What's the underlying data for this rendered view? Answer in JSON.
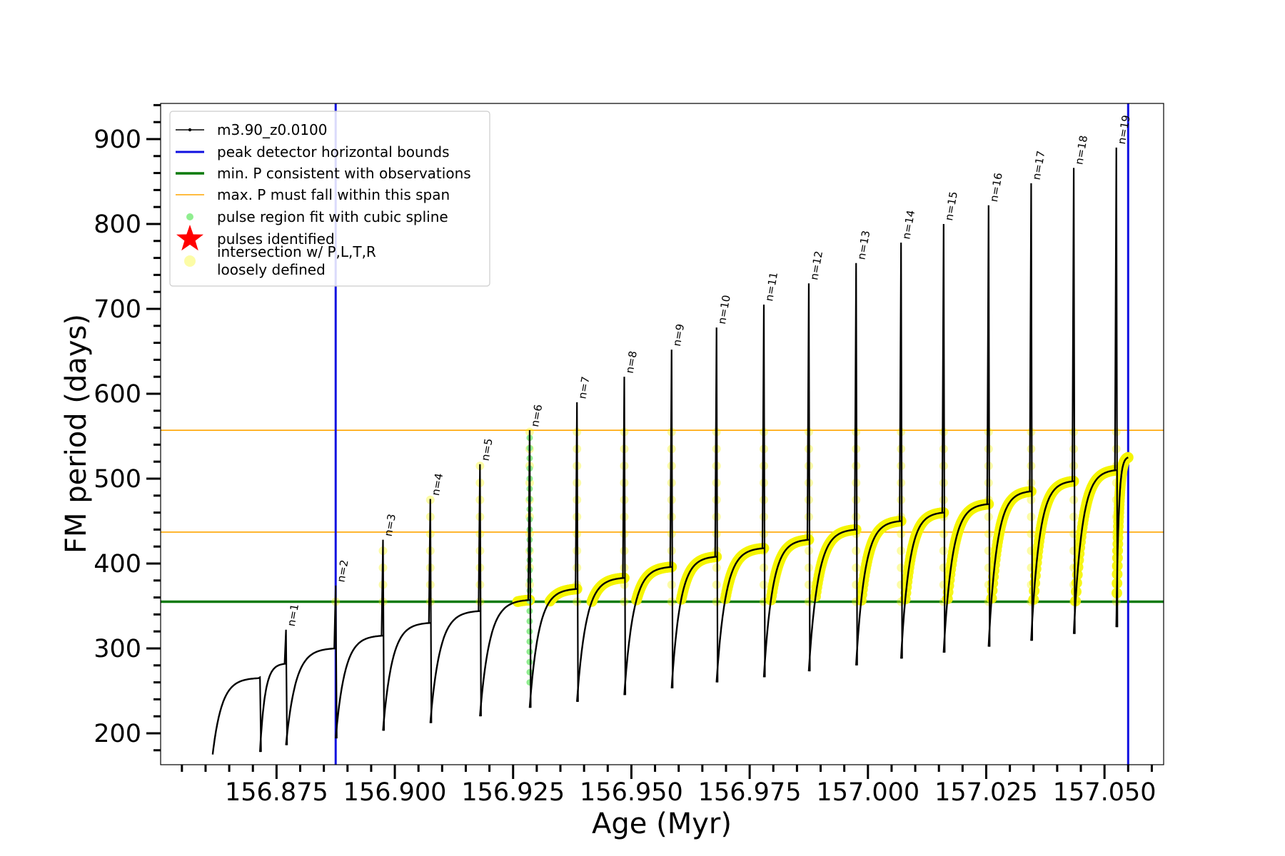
{
  "chart_data": {
    "type": "line",
    "xlabel": "Age (Myr)",
    "ylabel": "FM period (days)",
    "xlim": [
      156.8505,
      157.0625
    ],
    "ylim": [
      163,
      942
    ],
    "x_ticks": [
      156.875,
      156.9,
      156.925,
      156.95,
      156.975,
      157.0,
      157.025,
      157.05
    ],
    "x_tick_labels": [
      "156.875",
      "156.900",
      "156.925",
      "156.950",
      "156.975",
      "157.000",
      "157.025",
      "157.050"
    ],
    "y_ticks": [
      200,
      300,
      400,
      500,
      600,
      700,
      800,
      900
    ],
    "y_tick_labels": [
      "200",
      "300",
      "400",
      "500",
      "600",
      "700",
      "800",
      "900"
    ],
    "grid": false,
    "legend_placement": "top-left",
    "horizontal_lines": {
      "min_P": 355,
      "max_P_span": [
        437,
        557
      ]
    },
    "vertical_lines": [
      156.8875,
      157.055
    ],
    "colors": {
      "track": "#000000",
      "bounds": "#1010e0",
      "min_P": "#0a7a0a",
      "max_P": "#ffa500",
      "spline": "#90ee90",
      "pulse": "#ff0000",
      "intersection": "#f5f500"
    },
    "legend": [
      {
        "label": "m3.90_z0.0100",
        "kind": "line-marker"
      },
      {
        "label": "peak detector horizontal bounds",
        "kind": "line-blue"
      },
      {
        "label": "min. P consistent with observations",
        "kind": "line-green"
      },
      {
        "label": "max. P must fall within this span",
        "kind": "line-orange"
      },
      {
        "label": "pulse region fit with cubic spline",
        "kind": "dot-green"
      },
      {
        "label": "pulses identified",
        "kind": "star-red"
      },
      {
        "label": "intersection w/ P,L,T,R",
        "label2": "loosely defined",
        "kind": "dot-yellow"
      }
    ],
    "track_start": {
      "age": 156.8615,
      "period": 175
    },
    "cycles": [
      {
        "n": "",
        "age": 156.8715,
        "peak": 266,
        "min": 178
      },
      {
        "n": "n=1",
        "age": 156.877,
        "peak": 322,
        "min": 186
      },
      {
        "n": "n=2",
        "age": 156.8875,
        "peak": 374,
        "min": 194
      },
      {
        "n": "n=3",
        "age": 156.8975,
        "peak": 428,
        "min": 203
      },
      {
        "n": "n=4",
        "age": 156.9075,
        "peak": 476,
        "min": 212
      },
      {
        "n": "n=5",
        "age": 156.918,
        "peak": 517,
        "min": 220
      },
      {
        "n": "n=6",
        "age": 156.9285,
        "peak": 557,
        "min": 230
      },
      {
        "n": "n=7",
        "age": 156.9385,
        "peak": 590,
        "min": 237
      },
      {
        "n": "n=8",
        "age": 156.9485,
        "peak": 620,
        "min": 245
      },
      {
        "n": "n=9",
        "age": 156.9585,
        "peak": 652,
        "min": 253
      },
      {
        "n": "n=10",
        "age": 156.968,
        "peak": 678,
        "min": 260
      },
      {
        "n": "n=11",
        "age": 156.978,
        "peak": 705,
        "min": 266
      },
      {
        "n": "n=12",
        "age": 156.9875,
        "peak": 730,
        "min": 273
      },
      {
        "n": "n=13",
        "age": 156.9975,
        "peak": 754,
        "min": 280
      },
      {
        "n": "n=14",
        "age": 157.007,
        "peak": 778,
        "min": 288
      },
      {
        "n": "n=15",
        "age": 157.016,
        "peak": 800,
        "min": 295
      },
      {
        "n": "n=16",
        "age": 157.0255,
        "peak": 822,
        "min": 302
      },
      {
        "n": "n=17",
        "age": 157.0345,
        "peak": 848,
        "min": 309
      },
      {
        "n": "n=18",
        "age": 157.0435,
        "peak": 866,
        "min": 317
      },
      {
        "n": "n=19",
        "age": 157.0525,
        "peak": 890,
        "min": 325
      }
    ],
    "plateau_before": [
      265,
      282,
      300,
      315,
      330,
      344,
      357,
      370,
      383,
      396,
      408,
      418,
      428,
      440,
      450,
      460,
      470,
      485,
      497,
      510
    ],
    "final_plateau": 525
  }
}
